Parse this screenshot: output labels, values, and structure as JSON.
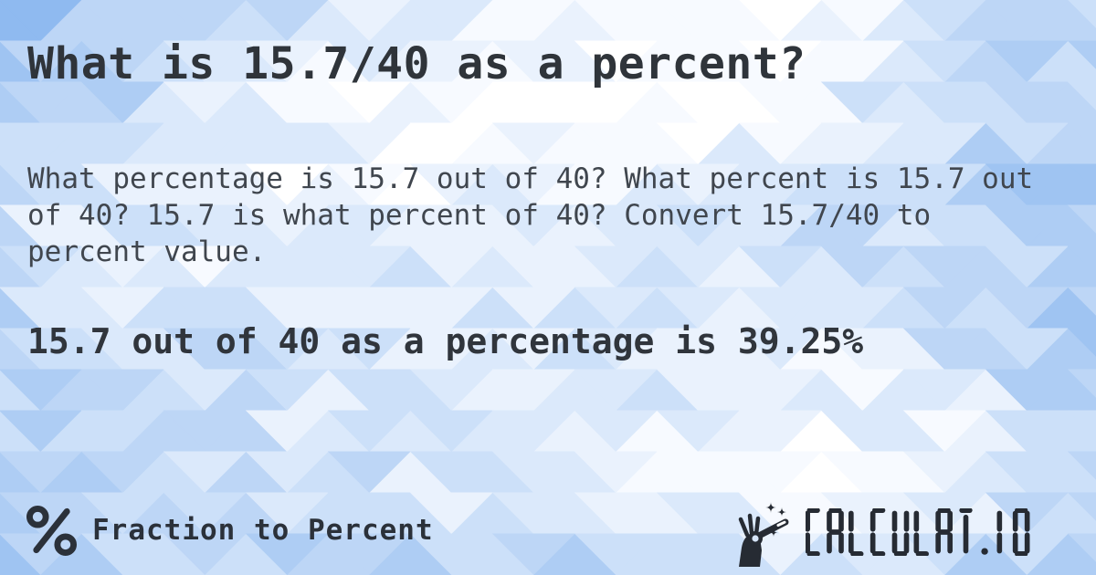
{
  "card": {
    "title": "What is 15.7/40 as a percent?",
    "description": "What percentage is 15.7 out of 40? What percent is 15.7 out\nof 40? 15.7 is what percent of 40? Convert 15.7/40 to\npercent value.",
    "answer": "15.7 out of 40 as a percentage is 39.25%"
  },
  "footer": {
    "category": "Fraction to Percent",
    "brand": "CALCULAT.IO"
  },
  "theme": {
    "text_title": "#2f343a",
    "text_body": "#40464e",
    "text_answer": "#30353c",
    "text_footer": "#2b313a",
    "logo_color": "#262b33",
    "background_palette": [
      "#8fbaf0",
      "#9fc4f2",
      "#aecdf4",
      "#bdd6f6",
      "#cce0f9",
      "#dbe9fb",
      "#eaf2fd",
      "#f7faff",
      "#ffffff"
    ]
  }
}
